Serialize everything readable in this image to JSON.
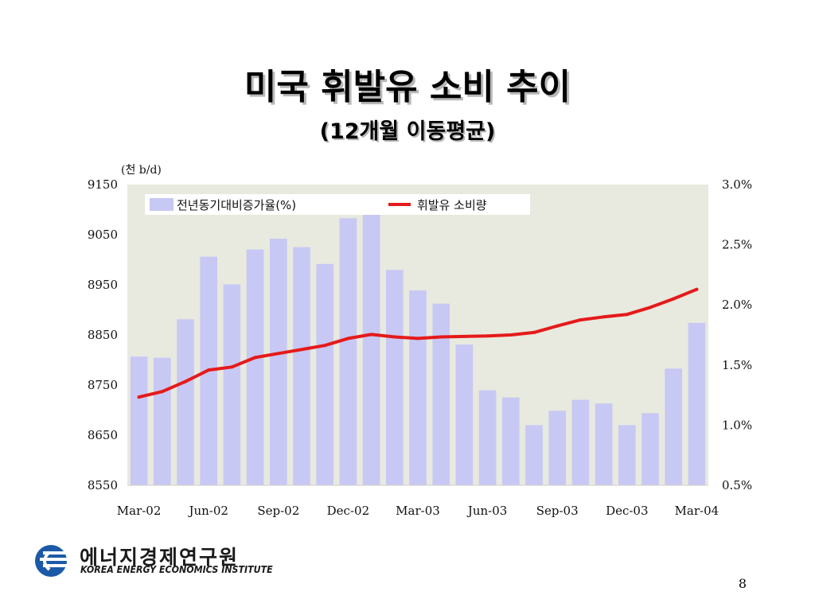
{
  "slide": {
    "title": "미국 휘발유 소비 추이",
    "subtitle": "(12개월 이동평균)",
    "page_number": "8"
  },
  "logo": {
    "name_kr": "에너지경제연구원",
    "name_en": "KOREA ENERGY ECONOMICS INSTITUTE"
  },
  "colors": {
    "plot_background": "#e8e9df",
    "bar": "#c8c8f4",
    "line": "#e51a1a",
    "logo_blue": "#1c5aa8"
  },
  "chart_data": {
    "type": "bar+line",
    "unit_label": "(천 b/d)",
    "categories": [
      "Mar-02",
      "Apr-02",
      "May-02",
      "Jun-02",
      "Jul-02",
      "Aug-02",
      "Sep-02",
      "Oct-02",
      "Nov-02",
      "Dec-02",
      "Jan-03",
      "Feb-03",
      "Mar-03",
      "Apr-03",
      "May-03",
      "Jun-03",
      "Jul-03",
      "Aug-03",
      "Sep-03",
      "Oct-03",
      "Nov-03",
      "Dec-03",
      "Jan-04",
      "Feb-04",
      "Mar-04"
    ],
    "x_tick_labels": [
      "Mar-02",
      "Jun-02",
      "Sep-02",
      "Dec-02",
      "Mar-03",
      "Jun-03",
      "Sep-03",
      "Dec-03",
      "Mar-04"
    ],
    "series": [
      {
        "name": "전년동기대비증가율(%)",
        "type": "bar",
        "axis": "right",
        "values": [
          1.57,
          1.56,
          1.88,
          2.4,
          2.17,
          2.46,
          2.55,
          2.48,
          2.34,
          2.72,
          2.75,
          2.29,
          2.12,
          2.01,
          1.67,
          1.29,
          1.23,
          1.0,
          1.12,
          1.21,
          1.18,
          1.0,
          1.1,
          1.47,
          1.85
        ]
      },
      {
        "name": "휘발유 소비량",
        "type": "line",
        "axis": "left",
        "values": [
          8726,
          8737,
          8757,
          8780,
          8786,
          8805,
          8813,
          8821,
          8829,
          8843,
          8851,
          8846,
          8843,
          8846,
          8847,
          8848,
          8850,
          8855,
          8868,
          8880,
          8886,
          8891,
          8905,
          8922,
          8941
        ]
      }
    ],
    "y_left": {
      "ticks": [
        "9150",
        "9050",
        "8950",
        "8850",
        "8750",
        "8650",
        "8550"
      ],
      "lim": [
        8550,
        9150
      ]
    },
    "y_right": {
      "ticks": [
        "3.0%",
        "2.5%",
        "2.0%",
        "1.5%",
        "1.0%",
        "0.5%"
      ],
      "lim": [
        0.5,
        3.0
      ]
    },
    "grid": false,
    "legend_placement": "top"
  }
}
